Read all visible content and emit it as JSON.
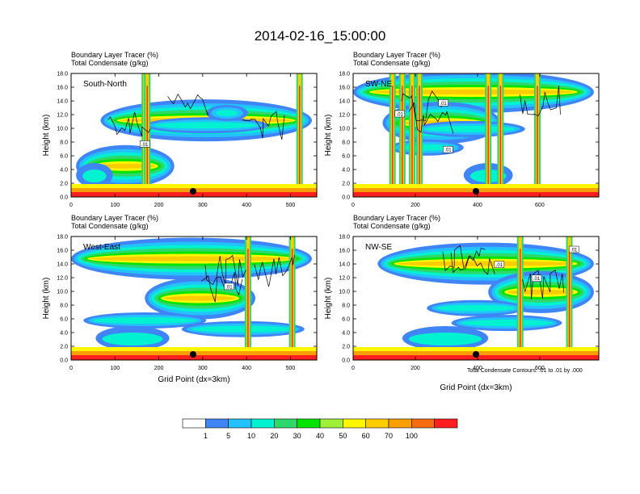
{
  "figure_title": "2014-02-16_15:00:00",
  "contour_note": "Total Condensate Contours: .01 to .01 by .000",
  "colors": {
    "frame": "#000000",
    "marker": "#000000",
    "contour": "#000000"
  },
  "colorbar": {
    "labels": [
      "1",
      "5",
      "10",
      "20",
      "30",
      "40",
      "50",
      "60",
      "70",
      "100"
    ],
    "colors": [
      "#ffffff",
      "#3f85f5",
      "#23c2ff",
      "#00f2d0",
      "#2ed86a",
      "#00e400",
      "#a0f03a",
      "#fff700",
      "#fdcd00",
      "#f9a000",
      "#f66a10",
      "#ff1f1f"
    ]
  },
  "chart_data": [
    {
      "type": "heatmap",
      "panel_label": "South-North",
      "subtitle_line1": "Boundary Layer Tracer   (%)",
      "subtitle_line2": "Total Condensate   (g/kg)",
      "ylabel": "Height (km)",
      "xlabel": "",
      "ylim": [
        0,
        18
      ],
      "yticks": [
        "0.0",
        "2.0",
        "4.0",
        "6.0",
        "8.0",
        "10.0",
        "12.0",
        "14.0",
        "16.0",
        "18.0"
      ],
      "xlim": [
        0,
        560
      ],
      "xticks": [
        0,
        100,
        200,
        300,
        400,
        500
      ],
      "marker_x": 278,
      "contour_labels": [
        {
          "text": ".01",
          "x": 168,
          "y": 7.6
        }
      ]
    },
    {
      "type": "heatmap",
      "panel_label": "SW-NE",
      "subtitle_line1": "Boundary Layer Tracer   (%)",
      "subtitle_line2": "Total Condensate   (g/kg)",
      "ylabel": "Height (km)",
      "xlabel": "",
      "ylim": [
        0,
        18
      ],
      "yticks": [
        "0.0",
        "2.0",
        "4.0",
        "6.0",
        "8.0",
        "10.0",
        "12.0",
        "14.0",
        "16.0",
        "18.0"
      ],
      "xlim": [
        0,
        790
      ],
      "xticks": [
        0,
        200,
        400,
        600
      ],
      "marker_x": 395,
      "contour_labels": [
        {
          "text": ".01",
          "x": 290,
          "y": 13.6
        },
        {
          "text": ".01",
          "x": 150,
          "y": 12.0
        },
        {
          "text": ".01",
          "x": 305,
          "y": 6.8
        }
      ]
    },
    {
      "type": "heatmap",
      "panel_label": "West-East",
      "subtitle_line1": "Boundary Layer Tracer   (%)",
      "subtitle_line2": "Total Condensate   (g/kg)",
      "ylabel": "Height (km)",
      "xlabel": "Grid Point (dx=3km)",
      "ylim": [
        0,
        18
      ],
      "yticks": [
        "0.0",
        "2.0",
        "4.0",
        "6.0",
        "8.0",
        "10.0",
        "12.0",
        "14.0",
        "16.0",
        "18.0"
      ],
      "xlim": [
        0,
        560
      ],
      "xticks": [
        0,
        100,
        200,
        300,
        400,
        500
      ],
      "marker_x": 278,
      "contour_labels": [
        {
          "text": ".01",
          "x": 360,
          "y": 10.6
        }
      ]
    },
    {
      "type": "heatmap",
      "panel_label": "NW-SE",
      "subtitle_line1": "Boundary Layer Tracer   (%)",
      "subtitle_line2": "Total Condensate   (g/kg)",
      "ylabel": "Height (km)",
      "xlabel": "Grid Point (dx=3km)",
      "ylim": [
        0,
        18
      ],
      "yticks": [
        "0.0",
        "2.0",
        "4.0",
        "6.0",
        "8.0",
        "10.0",
        "12.0",
        "14.0",
        "16.0",
        "18.0"
      ],
      "xlim": [
        0,
        790
      ],
      "xticks": [
        0,
        200,
        400,
        600
      ],
      "marker_x": 395,
      "contour_labels": [
        {
          "text": ".01",
          "x": 470,
          "y": 13.8
        },
        {
          "text": ".01",
          "x": 590,
          "y": 11.8
        },
        {
          "text": ".01",
          "x": 710,
          "y": 16.0
        }
      ]
    }
  ]
}
